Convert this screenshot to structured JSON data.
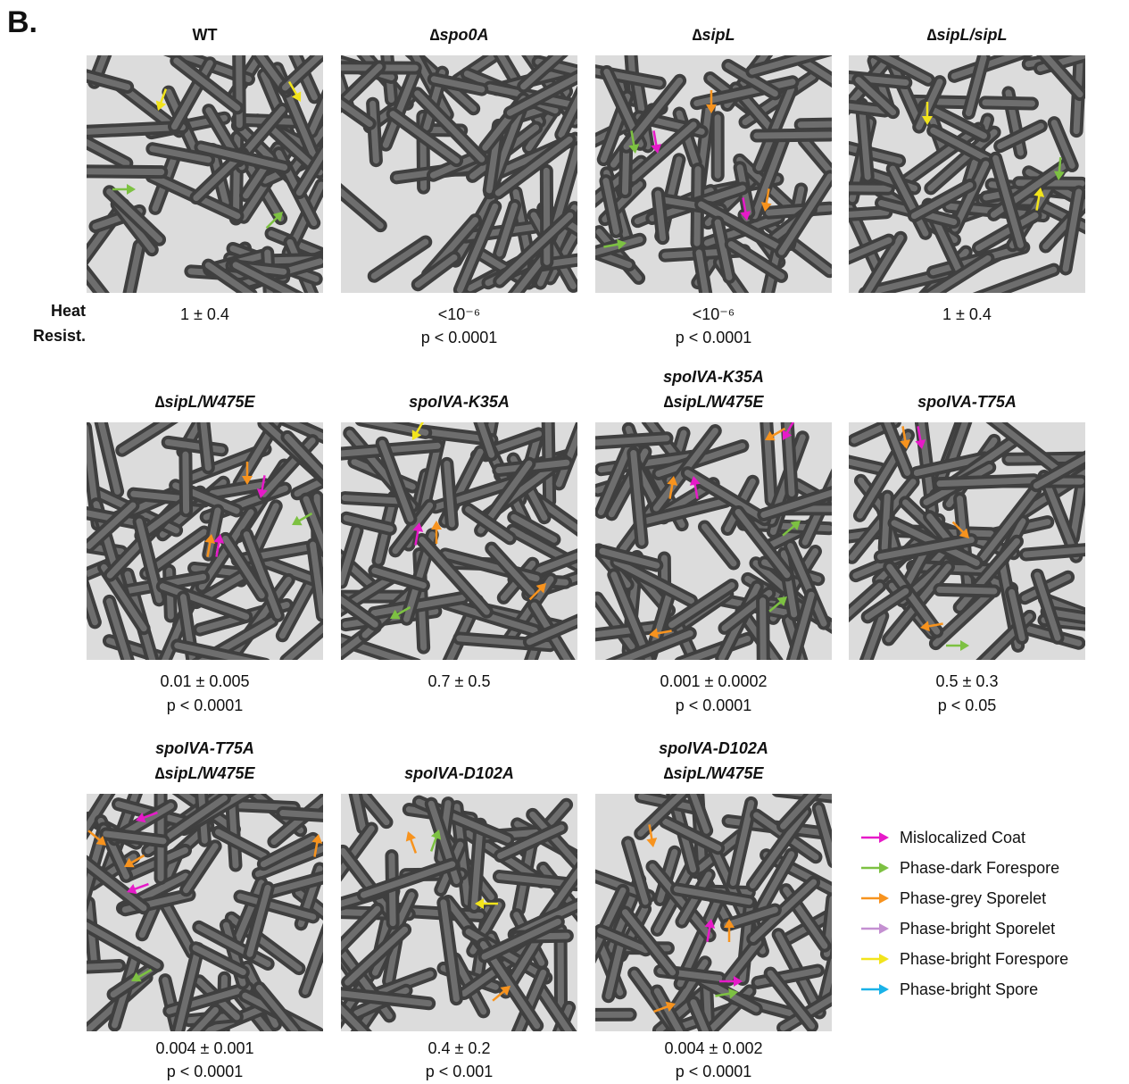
{
  "panel_label": "B.",
  "row_label": [
    "Heat",
    "Resist."
  ],
  "panels": [
    {
      "title": [
        "WT"
      ],
      "heat_resistance": "1 ± 0.4"
    },
    {
      "title": [
        "∆spo0A"
      ],
      "heat_resistance": "<10⁻⁶",
      "p_value": "p < 0.0001"
    },
    {
      "title": [
        "∆sipL"
      ],
      "heat_resistance": "<10⁻⁶",
      "p_value": "p < 0.0001"
    },
    {
      "title": [
        "∆sipL/sipL"
      ],
      "heat_resistance": "1 ± 0.4"
    },
    {
      "title": [
        "∆sipL/W475E"
      ],
      "heat_resistance": "0.01 ± 0.005",
      "p_value": "p < 0.0001"
    },
    {
      "title": [
        "spoIVA-K35A"
      ],
      "heat_resistance": "0.7 ± 0.5"
    },
    {
      "title": [
        "spoIVA-K35A",
        "∆sipL/W475E"
      ],
      "heat_resistance": "0.001 ± 0.0002",
      "p_value": "p < 0.0001"
    },
    {
      "title": [
        "spoIVA-T75A"
      ],
      "heat_resistance": "0.5 ± 0.3",
      "p_value": "p < 0.05"
    },
    {
      "title": [
        "spoIVA-T75A",
        "∆sipL/W475E"
      ],
      "heat_resistance": "0.004 ± 0.001",
      "p_value": "p < 0.0001"
    },
    {
      "title": [
        "spoIVA-D102A"
      ],
      "heat_resistance": "0.4 ± 0.2",
      "p_value": "p < 0.001"
    },
    {
      "title": [
        "spoIVA-D102A",
        "∆sipL/W475E"
      ],
      "heat_resistance": "0.004 ± 0.002",
      "p_value": "p < 0.0001"
    }
  ],
  "legend": [
    {
      "label": "Mislocalized Coat",
      "color": "#e61ac8"
    },
    {
      "label": "Phase-dark Forespore",
      "color": "#7dc142"
    },
    {
      "label": "Phase-grey Sporelet",
      "color": "#f7931e"
    },
    {
      "label": "Phase-bright Sporelet",
      "color": "#c490d1"
    },
    {
      "label": "Phase-bright Forespore",
      "color": "#f2e41c"
    },
    {
      "label": "Phase-bright Spore",
      "color": "#1ab2e8"
    }
  ]
}
